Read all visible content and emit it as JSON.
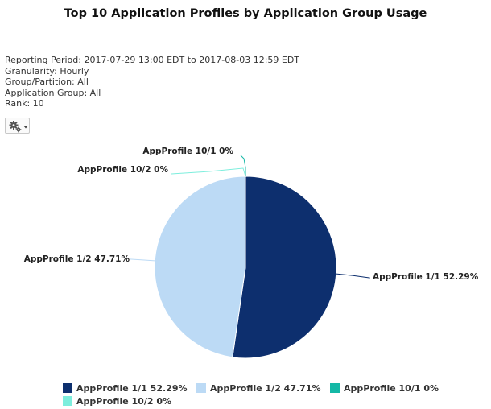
{
  "header": {
    "title": "Top 10 Application Profiles by Application Group Usage"
  },
  "report_info": {
    "reporting_period": "Reporting Period: 2017-07-29 13:00 EDT to 2017-08-03 12:59 EDT",
    "granularity": "Granularity: Hourly",
    "group_partition": "Group/Partition: All",
    "application_group": "Application Group: All",
    "rank": "Rank: 10"
  },
  "toolbar": {
    "options_icon": "gear-icon",
    "dropdown_icon": "caret-down-icon"
  },
  "chart_data": {
    "type": "pie",
    "categories": [
      "AppProfile 1/1",
      "AppProfile 1/2",
      "AppProfile 10/1",
      "AppProfile 10/2"
    ],
    "values": [
      52.29,
      47.71,
      0,
      0
    ],
    "colors": [
      "#0d2f6e",
      "#bcdaf5",
      "#14b8a6",
      "#7deedd"
    ],
    "slice_labels": [
      "AppProfile 1/1 52.29%",
      "AppProfile 1/2 47.71%",
      "AppProfile 10/1 0%",
      "AppProfile 10/2 0%"
    ],
    "legend": [
      "AppProfile 1/1 52.29%",
      "AppProfile 1/2 47.71%",
      "AppProfile 10/1 0%",
      "AppProfile 10/2 0%"
    ],
    "legend_position": "bottom"
  }
}
